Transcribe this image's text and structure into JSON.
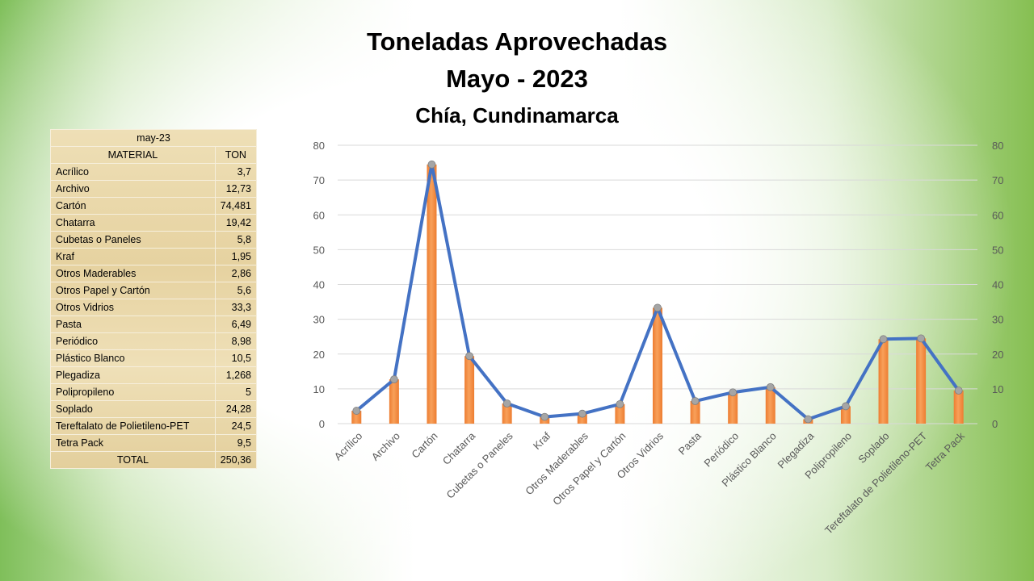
{
  "title": "Toneladas Aprovechadas",
  "subtitle": "Mayo - 2023",
  "location": "Chía, Cundinamarca",
  "table": {
    "period": "may-23",
    "col_material": "MATERIAL",
    "col_ton": "TON",
    "rows": [
      {
        "material": "Acrílico",
        "ton": "3,7"
      },
      {
        "material": "Archivo",
        "ton": "12,73"
      },
      {
        "material": "Cartón",
        "ton": "74,481"
      },
      {
        "material": "Chatarra",
        "ton": "19,42"
      },
      {
        "material": "Cubetas o Paneles",
        "ton": "5,8"
      },
      {
        "material": "Kraf",
        "ton": "1,95"
      },
      {
        "material": "Otros Maderables",
        "ton": "2,86"
      },
      {
        "material": "Otros Papel y Cartón",
        "ton": "5,6"
      },
      {
        "material": "Otros Vidrios",
        "ton": "33,3"
      },
      {
        "material": "Pasta",
        "ton": "6,49"
      },
      {
        "material": "Periódico",
        "ton": "8,98"
      },
      {
        "material": "Plástico Blanco",
        "ton": "10,5"
      },
      {
        "material": "Plegadiza",
        "ton": "1,268"
      },
      {
        "material": "Polipropileno",
        "ton": "5"
      },
      {
        "material": "Soplado",
        "ton": "24,28"
      },
      {
        "material": "Tereftalato de Polietileno-PET",
        "ton": "24,5"
      },
      {
        "material": "Tetra Pack",
        "ton": "9,5"
      }
    ],
    "total_label": "TOTAL",
    "total_value": "250,36"
  },
  "chart_data": {
    "type": "bar",
    "categories": [
      "Acrílico",
      "Archivo",
      "Cartón",
      "Chatarra",
      "Cubetas o Paneles",
      "Kraf",
      "Otros Maderables",
      "Otros Papel y Cartón",
      "Otros Vidrios",
      "Pasta",
      "Periódico",
      "Plástico Blanco",
      "Plegadiza",
      "Polipropileno",
      "Soplado",
      "Tereftalato de Polietileno-PET",
      "Tetra Pack"
    ],
    "series": [
      {
        "type": "bar",
        "values": [
          3.7,
          12.73,
          74.481,
          19.42,
          5.8,
          1.95,
          2.86,
          5.6,
          33.3,
          6.49,
          8.98,
          10.5,
          1.268,
          5,
          24.28,
          24.5,
          9.5
        ]
      },
      {
        "type": "line",
        "values": [
          3.7,
          12.73,
          74.481,
          19.42,
          5.8,
          1.95,
          2.86,
          5.6,
          33.3,
          6.49,
          8.98,
          10.5,
          1.268,
          5,
          24.28,
          24.5,
          9.5
        ]
      }
    ],
    "ylim": [
      0,
      80
    ],
    "yticks": [
      0,
      10,
      20,
      30,
      40,
      50,
      60,
      70,
      80
    ],
    "secondary_yticks": [
      0,
      10,
      20,
      30,
      40,
      50,
      60,
      70,
      80
    ],
    "grid": true,
    "colors": {
      "bar": "#ed7d31",
      "bar_light": "#f8a05a",
      "line": "#4472c4",
      "marker": "#a5a5a5"
    }
  }
}
